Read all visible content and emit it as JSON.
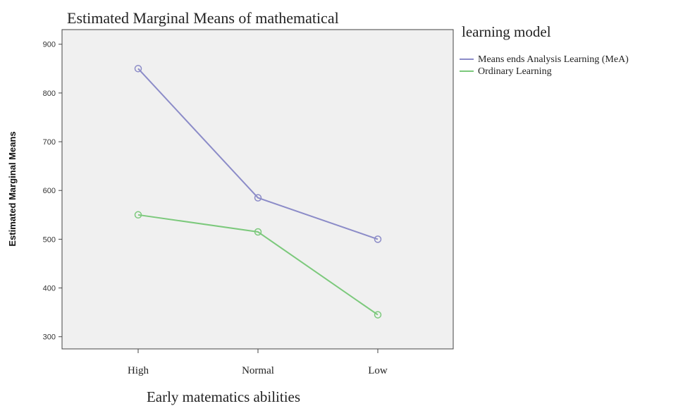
{
  "chart_data": {
    "type": "line",
    "title": "Estimated Marginal Means of mathematical",
    "xlabel": "Early matematics abilities",
    "ylabel": "Estimated Marginal Means",
    "categories": [
      "High",
      "Normal",
      "Low"
    ],
    "ylim": [
      275,
      930
    ],
    "yticks": [
      300,
      400,
      500,
      600,
      700,
      800,
      900
    ],
    "legend_title": "learning model",
    "legend_position": "right",
    "grid": false,
    "series": [
      {
        "name": "Means ends Analysis Learning (MeA)",
        "color": "#8c8cc8",
        "values": [
          850,
          585,
          500
        ]
      },
      {
        "name": "Ordinary Learning",
        "color": "#7cc97c",
        "values": [
          550,
          515,
          345
        ]
      }
    ]
  }
}
